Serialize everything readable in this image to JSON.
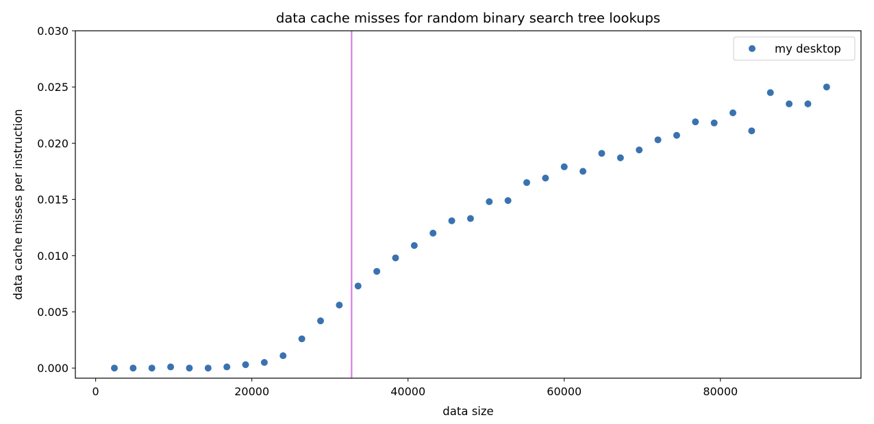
{
  "colors": {
    "series": "#3a72b0",
    "reference_line": "#d98ee6",
    "axes": "#000000",
    "background": "#ffffff"
  },
  "chart_data": {
    "type": "scatter",
    "title": "data cache misses for random binary search tree lookups",
    "xlabel": "data size",
    "ylabel": "data cache misses per instruction",
    "xlim": [
      -2600,
      98000
    ],
    "ylim": [
      -0.0009,
      0.03
    ],
    "xticks": [
      0,
      20000,
      40000,
      60000,
      80000
    ],
    "xtick_labels": [
      "0",
      "20000",
      "40000",
      "60000",
      "80000"
    ],
    "yticks": [
      0.0,
      0.005,
      0.01,
      0.015,
      0.02,
      0.025,
      0.03
    ],
    "ytick_labels": [
      "0.000",
      "0.005",
      "0.010",
      "0.015",
      "0.020",
      "0.025",
      "0.030"
    ],
    "grid": false,
    "legend_position": "top-right",
    "reference_lines": [
      {
        "orientation": "vertical",
        "x": 32768
      }
    ],
    "series": [
      {
        "name": "my desktop",
        "x": [
          2400,
          4800,
          7200,
          9600,
          12000,
          14400,
          16800,
          19200,
          21600,
          24000,
          26400,
          28800,
          31200,
          33600,
          36000,
          38400,
          40800,
          43200,
          45600,
          48000,
          50400,
          52800,
          55200,
          57600,
          60000,
          62400,
          64800,
          67200,
          69600,
          72000,
          74400,
          76800,
          79200,
          81600,
          84000,
          86400,
          88800,
          91200,
          93600
        ],
        "y": [
          0.0,
          0.0,
          0.0,
          0.0001,
          0.0,
          0.0,
          0.0001,
          0.0003,
          0.0005,
          0.0011,
          0.0026,
          0.0042,
          0.0056,
          0.0073,
          0.0086,
          0.0098,
          0.0109,
          0.012,
          0.0131,
          0.0133,
          0.0148,
          0.0149,
          0.0165,
          0.0169,
          0.0179,
          0.0175,
          0.0191,
          0.0187,
          0.0194,
          0.0203,
          0.0207,
          0.0219,
          0.0218,
          0.0227,
          0.0211,
          0.0245,
          0.0235,
          0.0235,
          0.025
        ]
      }
    ]
  }
}
